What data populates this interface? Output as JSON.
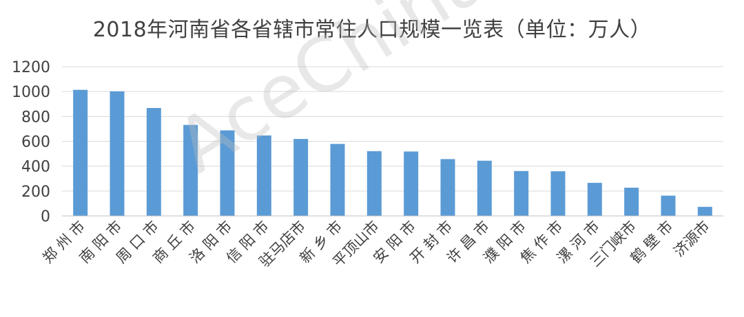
{
  "chart_data": {
    "type": "bar",
    "title": "2018年河南省各省辖市常住人口规模一览表（单位：万人）",
    "xlabel": "",
    "ylabel": "",
    "ylim": [
      0,
      1200
    ],
    "yticks": [
      0,
      200,
      400,
      600,
      800,
      1000,
      1200
    ],
    "grid": true,
    "legend": "none",
    "bar_color": "#5B9BD5",
    "categories": [
      "郑 州 市",
      "南 阳 市",
      "周 口 市",
      "商 丘 市",
      "洛 阳 市",
      "信 阳 市",
      "驻马店市",
      "新 乡 市",
      "平顶山市",
      "安 阳 市",
      "开 封 市",
      "许 昌 市",
      "濮 阳 市",
      "焦 作 市",
      "漯 河 市",
      "三门峡市",
      "鹤 壁 市",
      "济源市"
    ],
    "values": [
      1014,
      1002,
      868,
      732,
      688,
      647,
      619,
      579,
      521,
      518,
      457,
      444,
      361,
      359,
      266,
      227,
      163,
      73
    ]
  },
  "watermark": "AceChina"
}
